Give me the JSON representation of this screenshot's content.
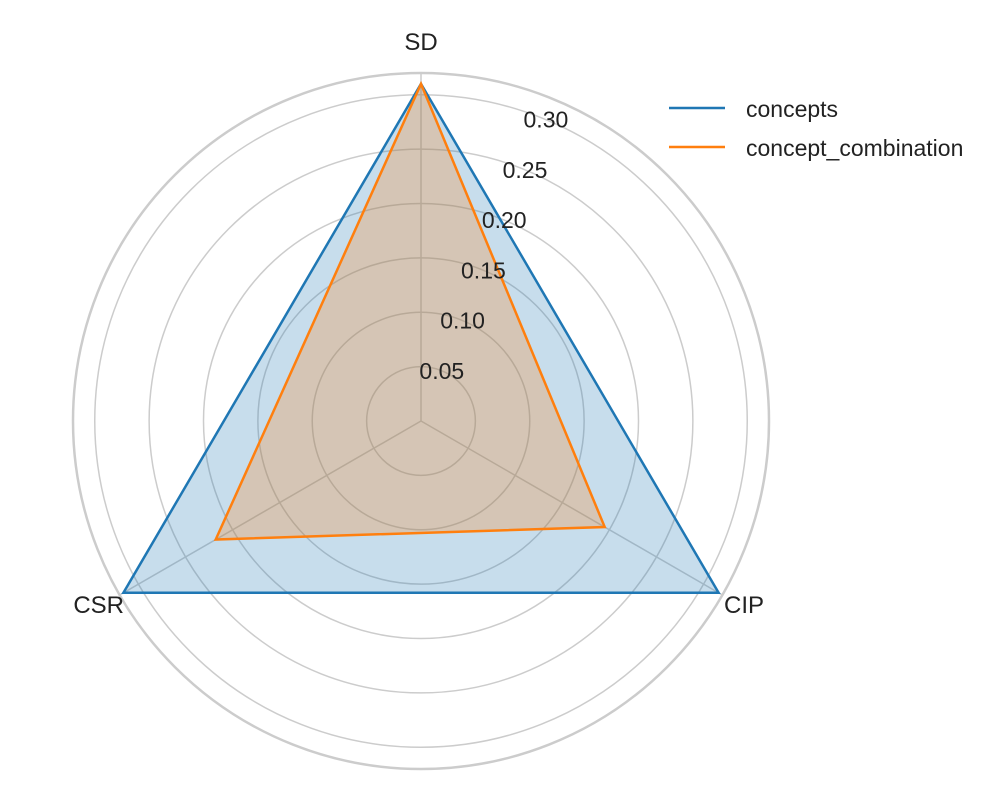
{
  "chart_data": {
    "type": "radar",
    "axes": [
      "SD",
      "CIP",
      "CSR"
    ],
    "rlim": [
      0,
      0.32
    ],
    "rticks": [
      "0.05",
      "0.10",
      "0.15",
      "0.20",
      "0.25",
      "0.30"
    ],
    "rtick_values": [
      0.05,
      0.1,
      0.15,
      0.2,
      0.25,
      0.3
    ],
    "grid": true,
    "legend_position": "top-right",
    "series": [
      {
        "name": "concepts",
        "values": [
          0.31,
          0.316,
          0.316
        ],
        "color": "#1f77b4",
        "fill": "#1f77b4"
      },
      {
        "name": "concept_combination",
        "values": [
          0.31,
          0.195,
          0.218
        ],
        "color": "#ff7f0e",
        "fill": "#ff7f0e"
      }
    ]
  }
}
